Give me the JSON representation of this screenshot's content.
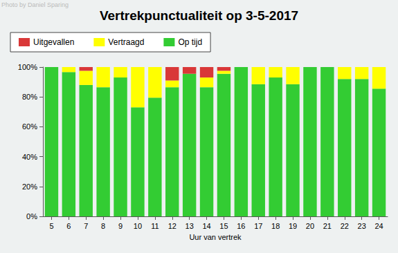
{
  "chart_data": {
    "type": "bar",
    "title": "Vertrekpunctualiteit op 3-5-2017",
    "annotation": "Photo by Daniel Sparing",
    "x_label": "Uur van vertrek",
    "stacked": true,
    "grid": false,
    "legend": "top-left",
    "categories": [
      "5",
      "6",
      "7",
      "8",
      "9",
      "10",
      "11",
      "12",
      "13",
      "14",
      "15",
      "16",
      "17",
      "18",
      "19",
      "20",
      "21",
      "22",
      "23",
      "24"
    ],
    "series": [
      {
        "name": "Uitgevallen",
        "color": "#d93838",
        "values": [
          0,
          0,
          2.5,
          0,
          0,
          0,
          0,
          9,
          4.5,
          7,
          2.5,
          0,
          0,
          0,
          0,
          0,
          0,
          0,
          0,
          0
        ]
      },
      {
        "name": "Vertraagd",
        "color": "#ffff00",
        "values": [
          0,
          3.4,
          9.5,
          13.5,
          7,
          27,
          20.5,
          4.5,
          0,
          6.5,
          2,
          0,
          11.5,
          7,
          11.5,
          0,
          0,
          8,
          8,
          14.5
        ]
      },
      {
        "name": "Op tijd",
        "color": "#33cc33",
        "values": [
          100,
          96.6,
          88,
          86.5,
          93,
          73,
          79.5,
          86.5,
          95.5,
          86.5,
          95.5,
          100,
          88.5,
          93,
          88.5,
          100,
          100,
          92,
          92,
          85.5
        ]
      }
    ],
    "ylim": [
      0,
      100
    ],
    "yticks": [
      {
        "value": 0,
        "label": "0%"
      },
      {
        "value": 20,
        "label": "20%"
      },
      {
        "value": 40,
        "label": "40%"
      },
      {
        "value": 60,
        "label": "60%"
      },
      {
        "value": 80,
        "label": "80%"
      },
      {
        "value": 100,
        "label": "100%"
      }
    ]
  }
}
